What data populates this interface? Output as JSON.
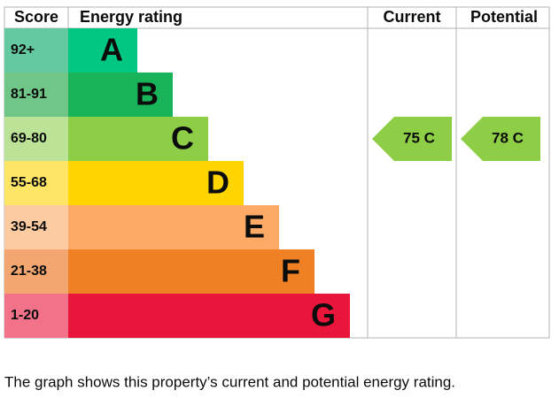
{
  "header": {
    "score": "Score",
    "rating": "Energy rating",
    "current": "Current",
    "potential": "Potential"
  },
  "bands": [
    {
      "score": "92+",
      "letter": "A"
    },
    {
      "score": "81-91",
      "letter": "B"
    },
    {
      "score": "69-80",
      "letter": "C"
    },
    {
      "score": "55-68",
      "letter": "D"
    },
    {
      "score": "39-54",
      "letter": "E"
    },
    {
      "score": "21-38",
      "letter": "F"
    },
    {
      "score": "1-20",
      "letter": "G"
    }
  ],
  "current": {
    "label": "75 C"
  },
  "potential": {
    "label": "78 C"
  },
  "footer": "The graph shows this property’s current and potential energy rating."
}
